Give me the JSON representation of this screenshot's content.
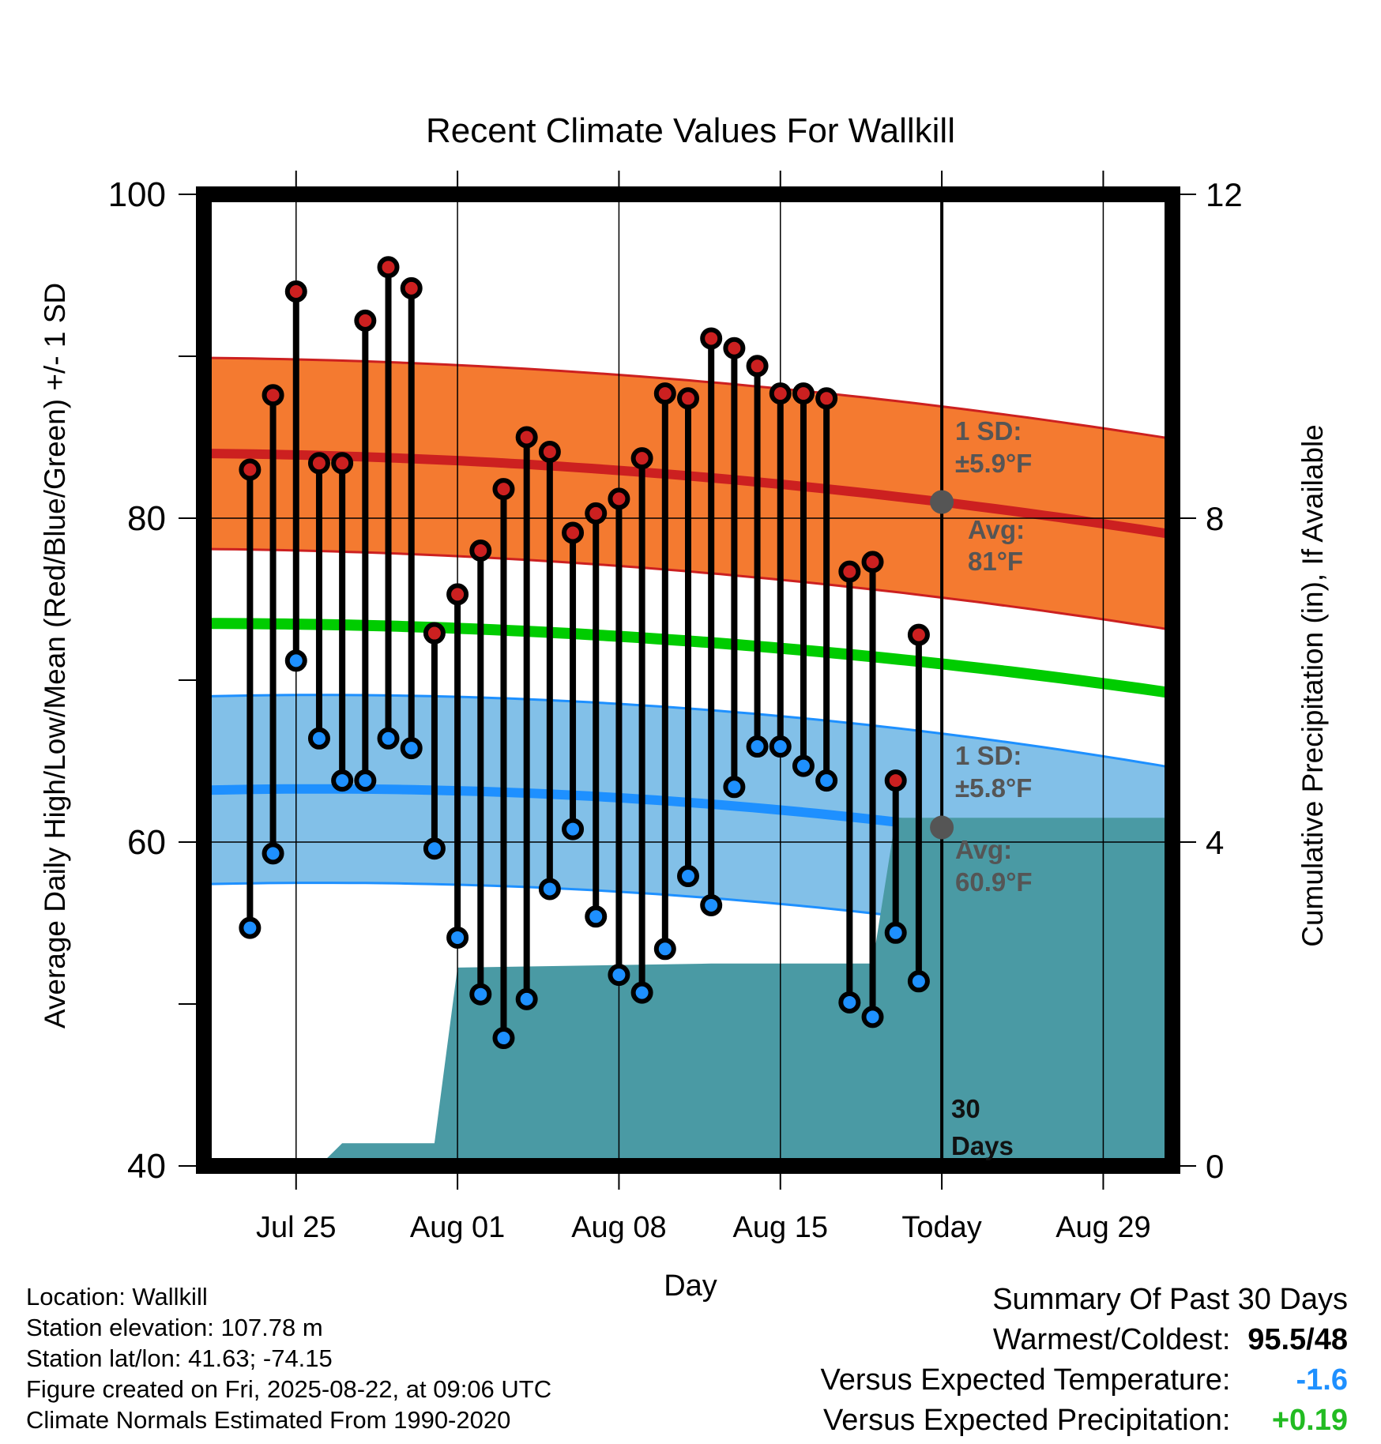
{
  "chart_data": {
    "type": "line",
    "title": "Recent Climate Values For Wallkill",
    "xlabel": "Day",
    "ylabel": "Average Daily High/Low/Mean (Red/Blue/Green) +/- 1 SD",
    "y2label": "Cumulative Precipitation (in), If Available",
    "ylim": [
      40,
      100
    ],
    "y2lim": [
      0,
      12
    ],
    "y_ticks": [
      "100",
      "80",
      "60",
      "40"
    ],
    "y2_ticks": [
      "12",
      "8",
      "4",
      "0"
    ],
    "x_range_days": [
      "2025-07-21",
      "2025-09-01"
    ],
    "x_ticks": [
      {
        "date": "2025-07-25",
        "label": "Jul 25"
      },
      {
        "date": "2025-08-01",
        "label": "Aug 01"
      },
      {
        "date": "2025-08-08",
        "label": "Aug 08"
      },
      {
        "date": "2025-08-15",
        "label": "Aug 15"
      },
      {
        "date": "2025-08-22",
        "label": "Today"
      },
      {
        "date": "2025-08-29",
        "label": "Aug 29"
      }
    ],
    "grid": true,
    "today_date": "2025-08-22",
    "days": [
      "2025-07-23",
      "2025-07-24",
      "2025-07-25",
      "2025-07-26",
      "2025-07-27",
      "2025-07-28",
      "2025-07-29",
      "2025-07-30",
      "2025-07-31",
      "2025-08-01",
      "2025-08-02",
      "2025-08-03",
      "2025-08-04",
      "2025-08-05",
      "2025-08-06",
      "2025-08-07",
      "2025-08-08",
      "2025-08-09",
      "2025-08-10",
      "2025-08-11",
      "2025-08-12",
      "2025-08-13",
      "2025-08-14",
      "2025-08-15",
      "2025-08-16",
      "2025-08-17",
      "2025-08-18",
      "2025-08-19",
      "2025-08-20",
      "2025-08-21"
    ],
    "series": [
      {
        "name": "High",
        "color": "#cc2020",
        "values": [
          83,
          87.6,
          94,
          83.4,
          83.4,
          92.2,
          95.5,
          94.2,
          72.9,
          75.3,
          78,
          81.8,
          85,
          84.1,
          79.1,
          80.3,
          81.2,
          83.7,
          87.7,
          87.4,
          91.1,
          90.5,
          89.4,
          87.7,
          87.7,
          87.4,
          76.7,
          77.3,
          63.8,
          72.8
        ]
      },
      {
        "name": "Low",
        "color": "#1e90ff",
        "values": [
          54.7,
          59.3,
          71.2,
          66.4,
          63.8,
          63.8,
          66.4,
          65.8,
          59.6,
          54.1,
          50.6,
          47.9,
          50.3,
          57.1,
          60.8,
          55.4,
          51.8,
          50.7,
          53.4,
          57.9,
          56.1,
          63.4,
          65.9,
          65.9,
          64.7,
          63.8,
          50.1,
          49.2,
          54.4,
          51.4
        ]
      }
    ],
    "normal_high": {
      "start": 84,
      "today": 81,
      "end": 79,
      "band_sd": 5.9
    },
    "normal_low": {
      "start": 63.2,
      "today": 60.9,
      "end": 58.8,
      "band_sd": 5.8
    },
    "normal_mean": {
      "start": 73.5,
      "today": 71,
      "end": 69.2
    },
    "normal_colors": {
      "high_line": "#cc2020",
      "high_band": "#f47a30",
      "low_line": "#1e90ff",
      "low_band": "#82c0e8",
      "mean_line": "#00cc00",
      "precip": "#4a9aa4"
    },
    "precip_cumulative": {
      "days": [
        "2025-07-21",
        "2025-07-26",
        "2025-07-27",
        "2025-07-31",
        "2025-08-01",
        "2025-08-12",
        "2025-08-19",
        "2025-08-20",
        "2025-09-01"
      ],
      "values": [
        0,
        0,
        0.28,
        0.28,
        2.45,
        2.5,
        2.5,
        4.3,
        4.3
      ]
    },
    "annotations": {
      "high_sd_line1": "1 SD:",
      "high_sd_line2": "±5.9°F",
      "high_avg_line1": "Avg:",
      "high_avg_line2": "81°F",
      "low_sd_line1": "1 SD:",
      "low_sd_line2": "±5.8°F",
      "low_avg_line1": "Avg:",
      "low_avg_line2": "60.9°F",
      "days_line1": "30",
      "days_line2": "Days"
    }
  },
  "info": {
    "location": "Location: Wallkill",
    "elevation": "Station elevation: 107.78 m",
    "latlon": "Station lat/lon: 41.63; -74.15",
    "created": "Figure created on Fri, 2025-08-22, at 09:06 UTC",
    "normals": "Climate Normals Estimated From 1990-2020"
  },
  "summary": {
    "title": "Summary Of Past 30 Days",
    "warmest_label": "Warmest/Coldest:",
    "warmest_value": "95.5/48",
    "temp_label": "Versus Expected Temperature:",
    "temp_value": "-1.6",
    "temp_color": "#1e90ff",
    "precip_label": "Versus Expected Precipitation:",
    "precip_value": "+0.19",
    "precip_color": "#22bb22"
  }
}
